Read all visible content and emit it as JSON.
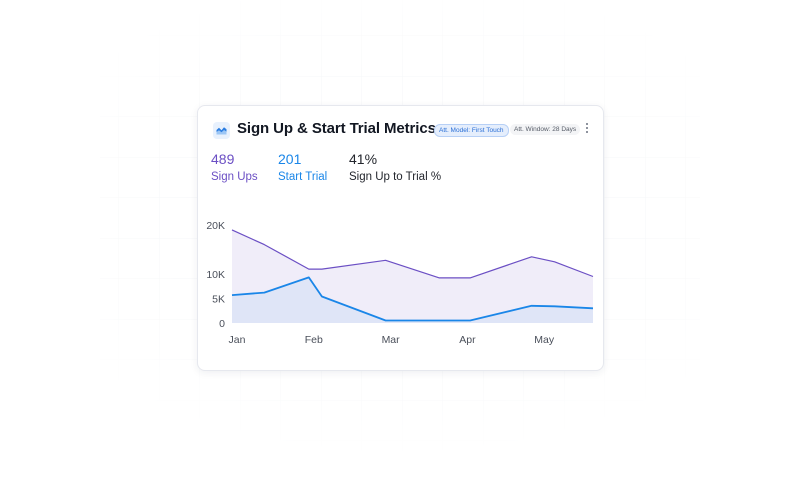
{
  "header": {
    "title": "Sign Up & Start Trial Metrics",
    "attribution_model": "Att. Model: First Touch",
    "attribution_window": "Att. Window: 28 Days"
  },
  "metrics": [
    {
      "value": "489",
      "label": "Sign Ups"
    },
    {
      "value": "201",
      "label": "Start Trial"
    },
    {
      "value": "41%",
      "label": "Sign Up to Trial %"
    }
  ],
  "colors": {
    "sign_ups": "#6b4fc4",
    "start_trial": "#1a86e8",
    "accent": "#2a6fd6"
  },
  "icons": {
    "logo": "chart-area-icon",
    "menu": "more-vertical-icon"
  },
  "chart_data": {
    "type": "area",
    "x": [
      "Jan",
      "Jan",
      "Feb",
      "Feb",
      "Mar",
      "Apr",
      "Apr",
      "May",
      "May",
      "May"
    ],
    "x_positions": [
      0,
      0.42,
      1,
      1.17,
      2,
      2.7,
      3.1,
      3.9,
      4.2,
      4.7
    ],
    "x_tick_labels": [
      "Jan",
      "Feb",
      "Mar",
      "Apr",
      "May"
    ],
    "series": [
      {
        "name": "Sign Ups",
        "values": [
          19000,
          16000,
          11000,
          11000,
          12800,
          9200,
          9200,
          13500,
          12500,
          9500
        ]
      },
      {
        "name": "Start Trial",
        "values": [
          5700,
          6200,
          9300,
          5400,
          500,
          500,
          500,
          3500,
          3400,
          3000
        ]
      }
    ],
    "y_ticks": [
      "20K",
      "10K",
      "5K",
      "0"
    ],
    "ylim": [
      0,
      20000
    ],
    "grid": false,
    "legend": "none"
  }
}
